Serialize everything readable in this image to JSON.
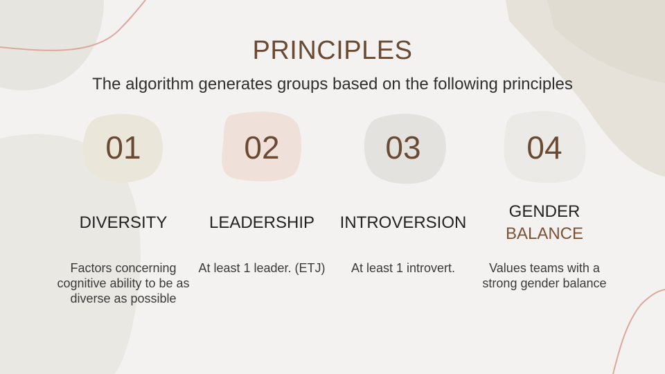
{
  "slide": {
    "title": "PRINCIPLES",
    "subtitle": "The algorithm generates groups based on the following principles"
  },
  "principles": [
    {
      "number": "01",
      "heading": "DIVERSITY",
      "description": "Factors concerning cognitive ability to be as diverse as possible",
      "blob_color": "#eae6da"
    },
    {
      "number": "02",
      "heading": "LEADERSHIP",
      "description": "At least 1 leader. (ETJ)",
      "blob_color": "#efe0da"
    },
    {
      "number": "03",
      "heading": "INTROVERSION",
      "description": "At least 1 introvert.",
      "blob_color": "#e4e2df"
    },
    {
      "number": "04",
      "heading_line1": "GENDER",
      "heading_line2": "BALANCE",
      "description": "Values teams with a strong gender balance",
      "blob_color": "#eceae6"
    }
  ],
  "colors": {
    "title": "#6b4a33",
    "accent_line": "#dba99c",
    "background": "#f3f2f0"
  }
}
